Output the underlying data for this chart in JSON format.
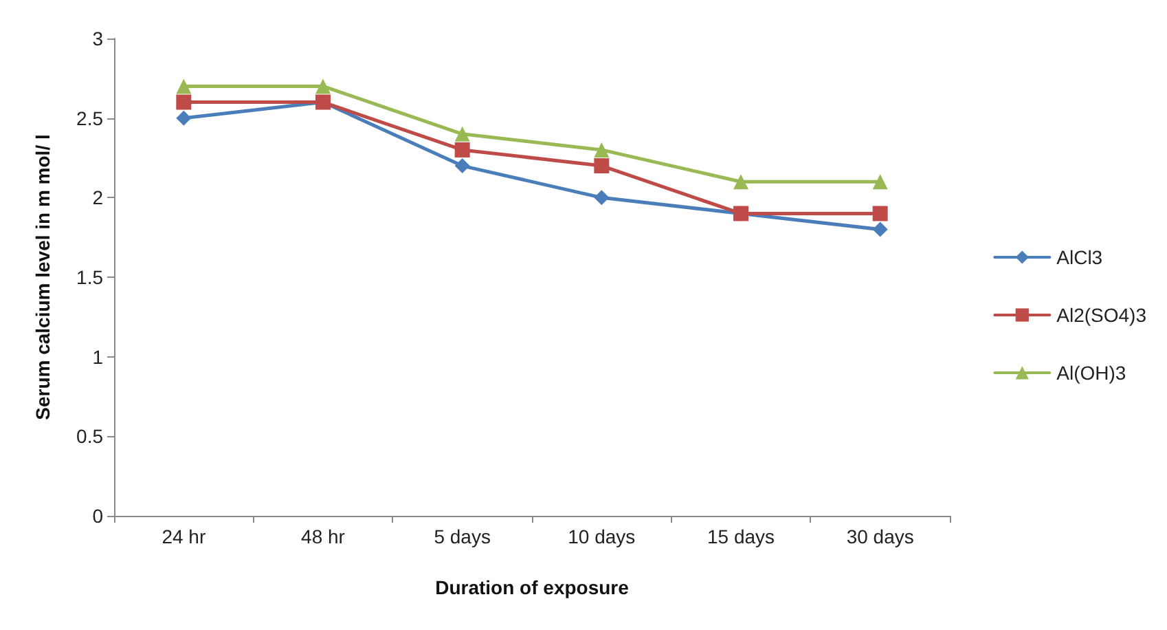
{
  "chart_data": {
    "type": "line",
    "xlabel": "Duration of exposure",
    "ylabel": "Serum calcium level in m mol/ l",
    "categories": [
      "24 hr",
      "48 hr",
      "5 days",
      "10 days",
      "15 days",
      "30 days"
    ],
    "series": [
      {
        "name": "AlCl3",
        "color": "#4a7ebb",
        "marker": "diamond",
        "values": [
          2.5,
          2.6,
          2.2,
          2.0,
          1.9,
          1.8
        ]
      },
      {
        "name": "Al2(SO4)3",
        "color": "#be4b48",
        "marker": "square",
        "values": [
          2.6,
          2.6,
          2.3,
          2.2,
          1.9,
          1.9
        ]
      },
      {
        "name": "Al(OH)3",
        "color": "#98b954",
        "marker": "triangle",
        "values": [
          2.7,
          2.7,
          2.4,
          2.3,
          2.1,
          2.1
        ]
      }
    ],
    "ylim": [
      0,
      3
    ],
    "yticks": [
      0,
      0.5,
      1,
      1.5,
      2,
      2.5,
      3
    ],
    "grid": false,
    "legend": "right",
    "line_style": "solid"
  }
}
